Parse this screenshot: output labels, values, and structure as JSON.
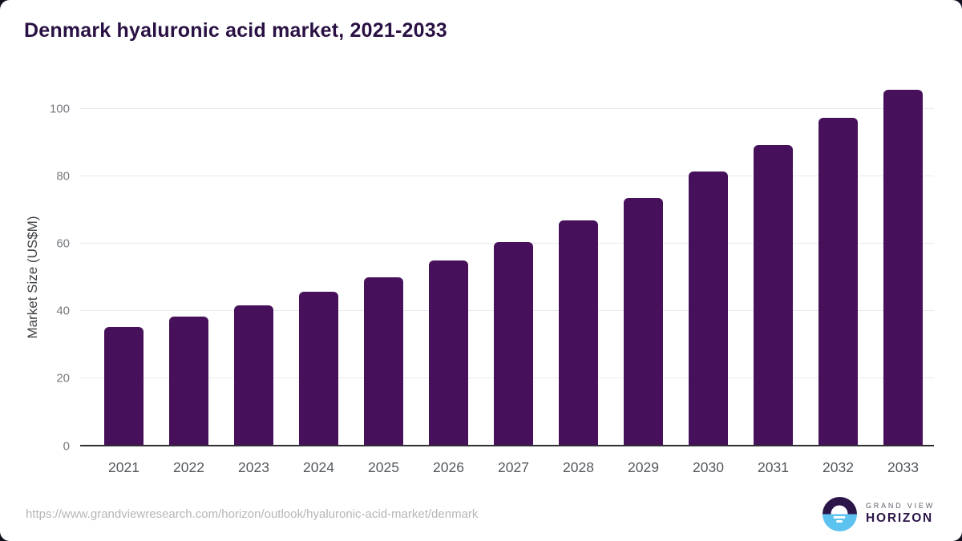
{
  "chart_data": {
    "type": "bar",
    "title": "Denmark hyaluronic acid market, 2021-2033",
    "categories": [
      "2021",
      "2022",
      "2023",
      "2024",
      "2025",
      "2026",
      "2027",
      "2028",
      "2029",
      "2030",
      "2031",
      "2032",
      "2033"
    ],
    "values": [
      35.4,
      38.4,
      41.8,
      45.8,
      50.1,
      55.1,
      60.6,
      66.8,
      73.5,
      81.4,
      89.3,
      97.2,
      105.7
    ],
    "xlabel": "",
    "ylabel": "Market Size (US$M)",
    "ylim": [
      0,
      110
    ],
    "yticks": [
      0,
      20,
      40,
      60,
      80,
      100
    ],
    "grid": true,
    "legend": "none",
    "bar_color": "#46105a"
  },
  "footer": {
    "source_url": "https://www.grandviewresearch.com/horizon/outlook/hyaluronic-acid-market/denmark",
    "logo": {
      "line1": "GRAND VIEW",
      "line2": "HORIZON",
      "icon": "sun-over-water-circle-icon"
    }
  },
  "colors": {
    "bar": "#46105a",
    "title_text": "#2a1143",
    "gridline": "#e9e9ed",
    "axis_line": "#2f2f33",
    "y_tick_text": "#76797e",
    "x_tick_text": "#54585c",
    "url_text": "#b4b6b8",
    "logo_dark": "#2c1549",
    "logo_blue": "#5cc3f0"
  }
}
